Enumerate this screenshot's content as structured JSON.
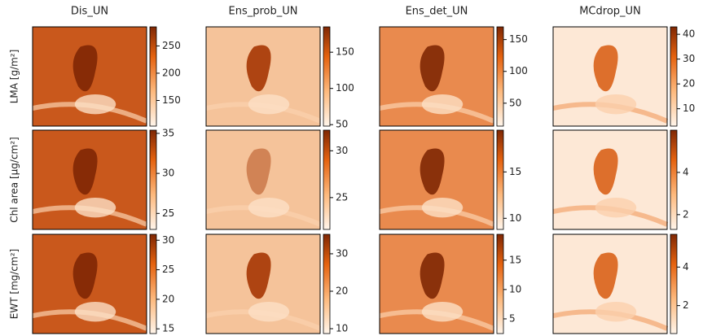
{
  "chart_data": [
    {
      "type": "heatmap",
      "title": "Dis_UN",
      "ylabel": "LMA [g/m²]",
      "clim": [
        103,
        285
      ],
      "cticks": [
        150,
        200,
        250
      ]
    },
    {
      "type": "heatmap",
      "title": "Ens_prob_UN",
      "clim": [
        48,
        185
      ],
      "cticks": [
        50,
        100,
        150
      ]
    },
    {
      "type": "heatmap",
      "title": "Ens_det_UN",
      "clim": [
        14,
        170
      ],
      "cticks": [
        50,
        100,
        150
      ]
    },
    {
      "type": "heatmap",
      "title": "MCdrop_UN",
      "clim": [
        3,
        43
      ],
      "cticks": [
        10,
        20,
        30,
        40
      ]
    },
    {
      "type": "heatmap",
      "ylabel": "Chl area [µg/cm²]",
      "clim": [
        23,
        35.4
      ],
      "cticks": [
        25,
        30,
        35
      ]
    },
    {
      "type": "heatmap",
      "clim": [
        21.6,
        32.2
      ],
      "cticks": [
        25,
        30
      ]
    },
    {
      "type": "heatmap",
      "clim": [
        8.8,
        19.5
      ],
      "cticks": [
        10,
        15
      ]
    },
    {
      "type": "heatmap",
      "clim": [
        1.3,
        6
      ],
      "cticks": [
        2,
        4
      ]
    },
    {
      "type": "heatmap",
      "ylabel": "EWT [mg/cm²]",
      "clim": [
        14.2,
        31
      ],
      "cticks": [
        15,
        20,
        25,
        30
      ]
    },
    {
      "type": "heatmap",
      "clim": [
        8.7,
        35.2
      ],
      "cticks": [
        10,
        20,
        30
      ]
    },
    {
      "type": "heatmap",
      "clim": [
        2.5,
        19.4
      ],
      "cticks": [
        5,
        10,
        15
      ]
    },
    {
      "type": "heatmap",
      "clim": [
        0.55,
        5.7
      ],
      "cticks": [
        2,
        4
      ]
    }
  ]
}
